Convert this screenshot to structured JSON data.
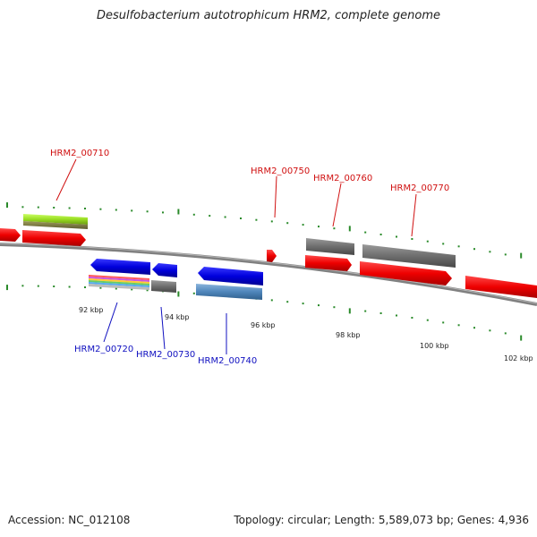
{
  "title": "Desulfobacterium autotrophicum HRM2, complete genome",
  "colors": {
    "forward_gene": "#e00000",
    "reverse_gene": "#0000cc",
    "rna_or_other": "#5a8fc0",
    "pseudo": "#777777",
    "label_forward": "#d01010",
    "label_reverse": "#1010c0",
    "tick": "#2a8a2a"
  },
  "scale": {
    "tick_labels": [
      "92 kbp",
      "94 kbp",
      "96 kbp",
      "98 kbp",
      "100 kbp",
      "102 kbp"
    ]
  },
  "genes_forward_labels": [
    "HRM2_00710",
    "HRM2_00750",
    "HRM2_00760",
    "HRM2_00770"
  ],
  "genes_reverse_labels": [
    "HRM2_00720",
    "HRM2_00730",
    "HRM2_00740"
  ],
  "footer": {
    "accession": "Accession: NC_012108",
    "stats": "Topology: circular; Length: 5,589,073 bp; Genes: 4,936"
  }
}
